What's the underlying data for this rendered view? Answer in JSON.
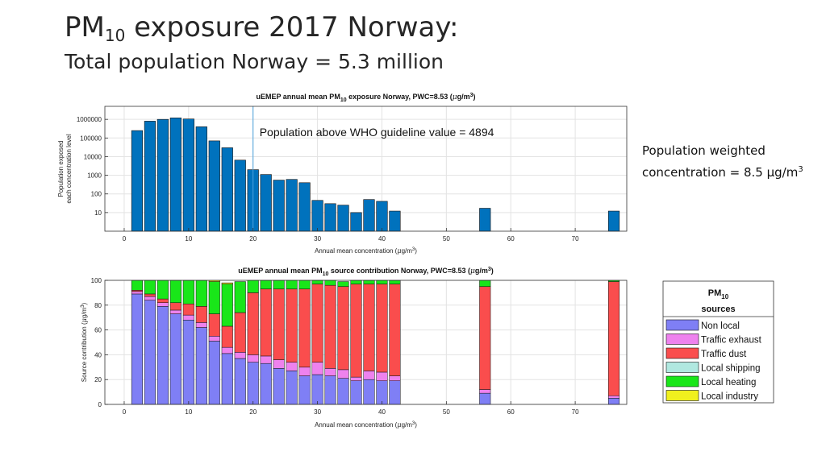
{
  "slide": {
    "title_main": "PM",
    "title_sub": "10",
    "title_rest": " exposure 2017 Norway:",
    "subtitle": "Total population Norway = 5.3 million"
  },
  "pwc_note": {
    "line1": "Population weighted",
    "line2_prefix": "concentration =  8.5 µg/m",
    "line2_sup": "3"
  },
  "chart_data": [
    {
      "type": "bar",
      "title_parts": [
        "uEMEP annual mean PM",
        "10",
        " exposure Norway, PWC=8.53 (",
        "μ",
        "g/m",
        "3",
        ")"
      ],
      "xlabel_parts": [
        "Annual mean concentration (",
        "μ",
        "g/m",
        "3",
        ")"
      ],
      "ylabel_lines": [
        "Population exposed",
        "each concentration level"
      ],
      "y_scale": "log",
      "ylim": [
        1,
        5000000
      ],
      "xlim": [
        -3,
        78
      ],
      "x_ticks": [
        0,
        10,
        20,
        30,
        40,
        50,
        60,
        70
      ],
      "y_ticks": [
        10,
        100,
        1000,
        10000,
        100000,
        1000000
      ],
      "y_tick_labels": [
        "10",
        "100",
        "1000",
        "10000",
        "100000",
        "1000000"
      ],
      "bar_width": 1.7,
      "bar_color": "#0072BD",
      "grid": true,
      "x": [
        2,
        4,
        6,
        8,
        10,
        12,
        14,
        16,
        18,
        20,
        22,
        24,
        26,
        28,
        30,
        32,
        34,
        36,
        38,
        40,
        42,
        56,
        76
      ],
      "values": [
        250000,
        800000,
        1000000,
        1200000,
        1050000,
        400000,
        70000,
        30000,
        6500,
        2000,
        1100,
        550,
        600,
        400,
        45,
        30,
        25,
        10,
        50,
        40,
        12,
        17,
        12
      ],
      "threshold_line": {
        "x": 20,
        "color": "#4DA3DF"
      },
      "annotation": "Population above WHO guideline value = 4894"
    },
    {
      "type": "bar",
      "stacked": true,
      "title_parts": [
        "uEMEP annual mean PM",
        "10",
        " source contribution Norway, PWC=8.53 (",
        "μ",
        "g/m",
        "3",
        ")"
      ],
      "xlabel_parts": [
        "Annual mean concentration (",
        "μ",
        "g/m",
        "3",
        ")"
      ],
      "ylabel_parts": [
        "Source contribution (",
        "μ",
        "g/m",
        "3",
        ")"
      ],
      "ylim": [
        0,
        100
      ],
      "xlim": [
        -3,
        78
      ],
      "x_ticks": [
        0,
        10,
        20,
        30,
        40,
        50,
        60,
        70
      ],
      "y_ticks": [
        0,
        20,
        40,
        60,
        80,
        100
      ],
      "bar_width": 1.7,
      "grid": true,
      "x": [
        2,
        4,
        6,
        8,
        10,
        12,
        14,
        16,
        18,
        20,
        22,
        24,
        26,
        28,
        30,
        32,
        34,
        36,
        38,
        40,
        42,
        56,
        76
      ],
      "series": [
        {
          "name": "Non local",
          "color": "#7F7FF5",
          "values": [
            89,
            84,
            79,
            73,
            68,
            62,
            51,
            41,
            37,
            34,
            33,
            29,
            27,
            23,
            24,
            23,
            21,
            19,
            20,
            19,
            19,
            9,
            5
          ]
        },
        {
          "name": "Traffic exhaust",
          "color": "#EE82EE",
          "values": [
            2,
            3,
            3,
            3,
            4,
            4,
            4,
            5,
            5,
            6,
            6,
            7,
            7,
            7,
            10,
            6,
            7,
            3,
            7,
            7,
            4,
            3,
            2
          ]
        },
        {
          "name": "Traffic dust",
          "color": "#FA4D4D",
          "values": [
            1,
            2,
            3,
            6,
            9,
            13,
            18,
            17,
            32,
            50,
            54,
            57,
            59,
            63,
            63,
            67,
            67,
            75,
            70,
            71,
            74,
            83,
            92
          ]
        },
        {
          "name": "Local shipping",
          "color": "#B0E8E0",
          "values": [
            0,
            0,
            0,
            0,
            0,
            0,
            0,
            0,
            0,
            0,
            0,
            0,
            0,
            0,
            0,
            0,
            0,
            0,
            0,
            0,
            0,
            0,
            0
          ]
        },
        {
          "name": "Local heating",
          "color": "#19E619",
          "values": [
            8,
            11,
            15,
            18,
            19,
            21,
            26,
            34,
            25,
            10,
            7,
            7,
            7,
            7,
            3,
            4,
            4,
            3,
            3,
            3,
            3,
            5,
            1
          ]
        },
        {
          "name": "Local industry",
          "color": "#F0F01E",
          "values": [
            0,
            0,
            0,
            0,
            0,
            0,
            1,
            1,
            0,
            0,
            0,
            0,
            0,
            0,
            0,
            0,
            0,
            0,
            0,
            0,
            0,
            0,
            0
          ]
        }
      ]
    }
  ],
  "legend": {
    "title_main": "PM",
    "title_sub": "10",
    "title_line2": "sources"
  }
}
